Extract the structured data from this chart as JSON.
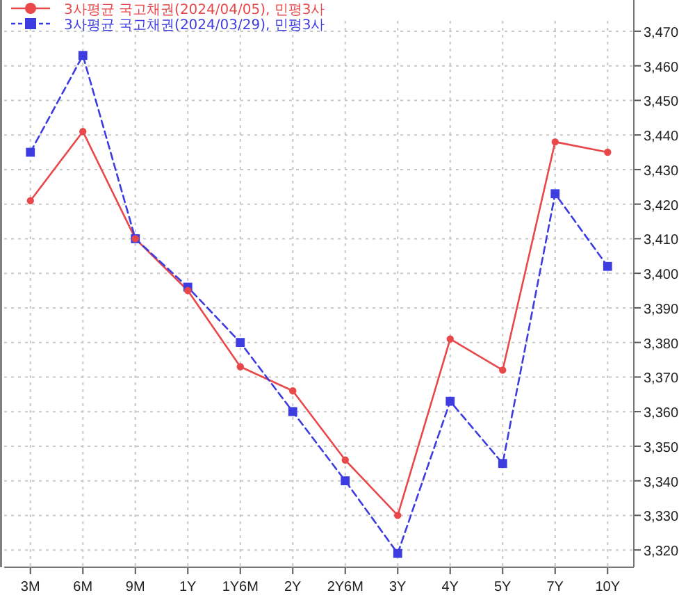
{
  "chart_data": {
    "type": "line",
    "categories": [
      "3M",
      "6M",
      "9M",
      "1Y",
      "1Y6M",
      "2Y",
      "2Y6M",
      "3Y",
      "4Y",
      "5Y",
      "7Y",
      "10Y"
    ],
    "ylim": [
      3315,
      3473
    ],
    "yticks": [
      {
        "value": 3320,
        "label": "3,320"
      },
      {
        "value": 3330,
        "label": "3,330"
      },
      {
        "value": 3340,
        "label": "3,340"
      },
      {
        "value": 3350,
        "label": "3,350"
      },
      {
        "value": 3360,
        "label": "3,360"
      },
      {
        "value": 3370,
        "label": "3,370"
      },
      {
        "value": 3380,
        "label": "3,380"
      },
      {
        "value": 3390,
        "label": "3,390"
      },
      {
        "value": 3400,
        "label": "3,400"
      },
      {
        "value": 3410,
        "label": "3,410"
      },
      {
        "value": 3420,
        "label": "3,420"
      },
      {
        "value": 3430,
        "label": "3,430"
      },
      {
        "value": 3440,
        "label": "3,440"
      },
      {
        "value": 3450,
        "label": "3,450"
      },
      {
        "value": 3460,
        "label": "3,460"
      },
      {
        "value": 3470,
        "label": "3,470"
      }
    ],
    "grid": true,
    "legend": "top left",
    "series": [
      {
        "name": "3사평균 국고채권(2024/04/05), 민평3사",
        "color": "#e8484a",
        "marker": "circle",
        "line_style": "solid",
        "values": [
          3421,
          3441,
          3410,
          3395,
          3373,
          3366,
          3346,
          3330,
          3381,
          3372,
          3438,
          3435
        ]
      },
      {
        "name": "3사평균 국고채권(2024/03/29), 민평3사",
        "color": "#3c3ce0",
        "marker": "square",
        "line_style": "dashed",
        "values": [
          3435,
          3463,
          3410,
          3396,
          3380,
          3360,
          3340,
          3319,
          3363,
          3345,
          3423,
          3402
        ]
      }
    ]
  }
}
